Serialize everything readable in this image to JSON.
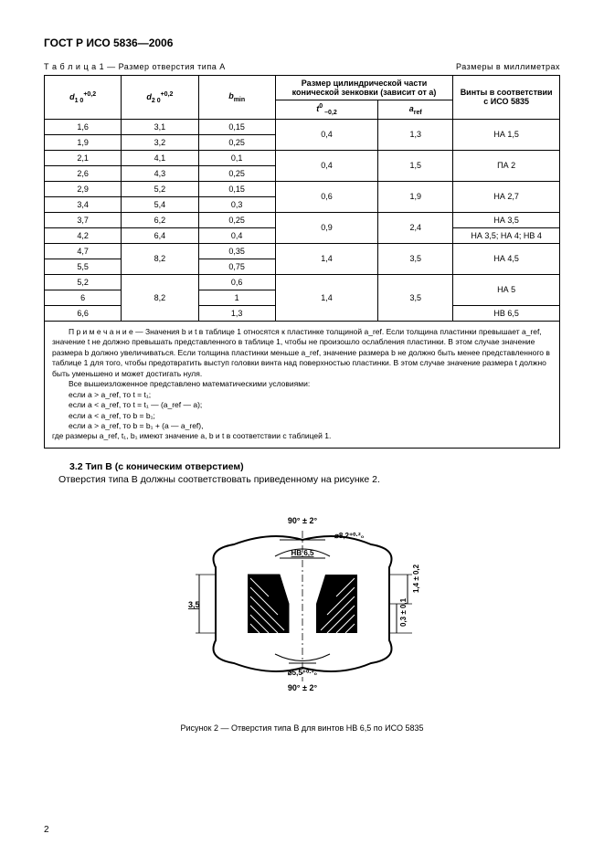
{
  "doc": {
    "title": "ГОСТ Р ИСО 5836—2006",
    "table_label": "Т а б л и ц а  1 — Размер отверстия типа А",
    "units": "Размеры в миллиметрах",
    "page_number": "2"
  },
  "headers": {
    "d1": "d",
    "d1_sub": "1  0",
    "d1_sup": "+0,2",
    "d2": "d",
    "d2_sub": "2  0",
    "d2_sup": "+0,2",
    "bmin": "b",
    "bmin_sub": "min",
    "cyl_group": "Размер цилиндрической части конической зенковки (зависит от а)",
    "t": "t",
    "t_sub": " –0,2",
    "t_sup": "0",
    "aref": "a",
    "aref_sub": "ref",
    "screws": "Винты в соответствии с ИСО 5835"
  },
  "rows": [
    {
      "d1": "1,6",
      "d2": "3,1",
      "b": "0,15",
      "t": "0,4",
      "a": "1,3",
      "screw": "НА 1,5",
      "span": 2
    },
    {
      "d1": "1,9",
      "d2": "3,2",
      "b": "0,25"
    },
    {
      "d1": "2,1",
      "d2": "4,1",
      "b": "0,1",
      "t": "0,4",
      "a": "1,5",
      "screw": "ПА 2",
      "span": 2
    },
    {
      "d1": "2,6",
      "d2": "4,3",
      "b": "0,25"
    },
    {
      "d1": "2,9",
      "d2": "5,2",
      "b": "0,15",
      "t": "0,6",
      "a": "1,9",
      "screw": "НА 2,7",
      "span": 2
    },
    {
      "d1": "3,4",
      "d2": "5,4",
      "b": "0,3"
    },
    {
      "d1": "3,7",
      "d2": "6,2",
      "b": "0,25",
      "t": "0,9",
      "a": "2,4",
      "screw": "НА 3,5",
      "span": 2,
      "screw_single": "НА 3,5"
    },
    {
      "d1": "4,2",
      "d2": "6,4",
      "b": "0,4",
      "screw_single": "НА 3,5; НА 4; НВ 4"
    },
    {
      "d1": "4,7",
      "d2": "8,2",
      "b": "0,35",
      "t": "1,4",
      "a": "3,5",
      "screw": "НА 4,5",
      "span": 2,
      "d2span": 2
    },
    {
      "d1": "5,5",
      "b": "0,75"
    },
    {
      "d1": "5,2",
      "d2": "8,2",
      "b": "0,6",
      "t": "1,4",
      "a": "3,5",
      "screw": "НА 5",
      "span": 3,
      "d2span": 3,
      "screw_span": 2
    },
    {
      "d1": "6",
      "b": "1"
    },
    {
      "d1": "6,6",
      "b": "1,3",
      "screw_single": "НВ 6,5"
    }
  ],
  "note": {
    "l1": "П р и м е ч а н и е — Значения b и t в таблице 1 относятся к пластинке толщиной a_ref. Если толщина пластинки превышает a_ref, значение t не должно превышать представленного в таблице 1, чтобы не произошло ослабления пластинки. В этом случае значение размера b должно увеличиваться. Если толщина пластинки меньше a_ref, значение размера b не должно быть менее представленного в таблице 1 для того, чтобы предотвратить выступ головки винта над поверхностью пластинки. В этом случае значение размера t должно быть уменьшено и может достигать нуля.",
    "l2": "Все вышеизложенное представлено математическими условиями:",
    "c1": "если a > a_ref, то t = t₁;",
    "c2": "если a < a_ref, то t = t₁ — (a_ref — a);",
    "c3": "если a < a_ref, то b = b₁;",
    "c4": "если a > a_ref, то b = b₁ + (a — a_ref),",
    "l3": "где размеры a_ref, t₁, b₁ имеют значение a, b и t в соответствии с таблицей 1."
  },
  "section": {
    "title": "3.2  Тип В (с коническим отверстием)",
    "body": "Отверстия типа В должны соответствовать приведенному на рисунке 2."
  },
  "figure": {
    "labels": {
      "top_angle": "90° ± 2°",
      "dia_top": "⌀8,2⁺⁰·²₀",
      "hb": "НВ 6,5",
      "right1": "1,4 ± 0,2",
      "right2": "0,3 ± 0,1",
      "left": "3,5",
      "dia_bot": "⌀5,5⁺⁰·²₀",
      "bot_angle": "90° ± 2°"
    },
    "caption": "Рисунок 2 — Отверстия типа В для винтов НВ 6,5 по ИСО 5835"
  }
}
